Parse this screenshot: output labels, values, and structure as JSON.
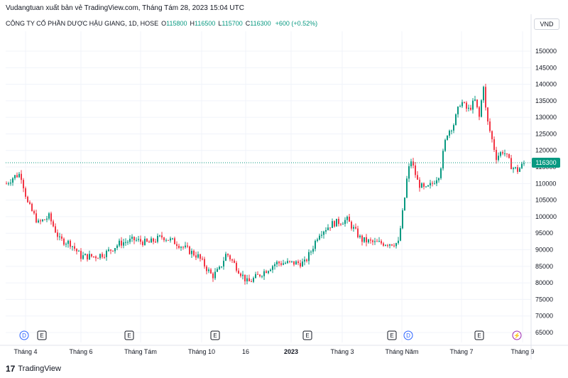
{
  "header": {
    "publisher_text": "Vudangtuan xuất bản vẻ TradingView.com, Tháng Tám 28, 2023 15:04 UTC"
  },
  "symbol_bar": {
    "symbol": "CÔNG TY CỔ PHẦN DƯỢC HẬU GIANG, 1D, HOSE",
    "open_label": "O",
    "open": "115800",
    "high_label": "H",
    "high": "116500",
    "low_label": "L",
    "low": "115700",
    "close_label": "C",
    "close": "116300",
    "change": "+600 (+0.52%)"
  },
  "currency": "VND",
  "footer": {
    "brand": "TradingView",
    "logo_glyph": "17"
  },
  "colors": {
    "up": "#089981",
    "down": "#f23645",
    "grid": "#f0f3fa",
    "axis_text": "#131722",
    "last_price_bg": "#089981"
  },
  "chart_data": {
    "type": "candlestick",
    "title": "",
    "ylim": [
      62000,
      156000
    ],
    "y_ticks": [
      65000,
      70000,
      75000,
      80000,
      85000,
      90000,
      95000,
      100000,
      105000,
      110000,
      115000,
      120000,
      125000,
      130000,
      135000,
      140000,
      145000,
      150000
    ],
    "y_tick_labels": [
      "65000",
      "70000",
      "75000",
      "80000",
      "85000",
      "90000",
      "95000",
      "100000",
      "105000",
      "110000",
      "115000",
      "120000",
      "125000",
      "130000",
      "135000",
      "140000",
      "145000",
      "150000"
    ],
    "x_labels": [
      "Tháng 4",
      "Tháng 6",
      "Tháng Tám",
      "Tháng 10",
      "16",
      "2023",
      "Tháng 3",
      "Tháng Năm",
      "Tháng 7",
      "Tháng 9"
    ],
    "last_price": 116300,
    "last_price_label": "116300",
    "event_markers": [
      "D",
      "E",
      "E",
      "E",
      "E",
      "E",
      "D",
      "E",
      "⚡"
    ],
    "anchors": [
      [
        0,
        110000
      ],
      [
        10,
        112000
      ],
      [
        20,
        113000
      ],
      [
        30,
        104000
      ],
      [
        45,
        98000
      ],
      [
        60,
        100000
      ],
      [
        75,
        93000
      ],
      [
        90,
        92000
      ],
      [
        105,
        88000
      ],
      [
        125,
        88000
      ],
      [
        140,
        89000
      ],
      [
        160,
        92000
      ],
      [
        180,
        93000
      ],
      [
        200,
        92000
      ],
      [
        220,
        94000
      ],
      [
        240,
        92000
      ],
      [
        255,
        90000
      ],
      [
        270,
        88000
      ],
      [
        290,
        82000
      ],
      [
        300,
        84000
      ],
      [
        310,
        89000
      ],
      [
        320,
        86000
      ],
      [
        340,
        80000
      ],
      [
        360,
        83000
      ],
      [
        380,
        86000
      ],
      [
        400,
        86000
      ],
      [
        420,
        86000
      ],
      [
        430,
        90000
      ],
      [
        440,
        95000
      ],
      [
        460,
        98000
      ],
      [
        480,
        99000
      ],
      [
        500,
        93000
      ],
      [
        520,
        92000
      ],
      [
        540,
        92000
      ],
      [
        552,
        92000
      ],
      [
        560,
        104000
      ],
      [
        565,
        113000
      ],
      [
        570,
        117000
      ],
      [
        580,
        110000
      ],
      [
        590,
        108000
      ],
      [
        600,
        110000
      ],
      [
        610,
        113000
      ],
      [
        620,
        125000
      ],
      [
        630,
        128000
      ],
      [
        640,
        135000
      ],
      [
        650,
        132000
      ],
      [
        660,
        135000
      ],
      [
        666,
        130000
      ],
      [
        672,
        140000
      ],
      [
        676,
        130000
      ],
      [
        682,
        125000
      ],
      [
        690,
        118000
      ],
      [
        700,
        120000
      ],
      [
        712,
        115000
      ],
      [
        720,
        114000
      ],
      [
        730,
        116300
      ]
    ]
  }
}
